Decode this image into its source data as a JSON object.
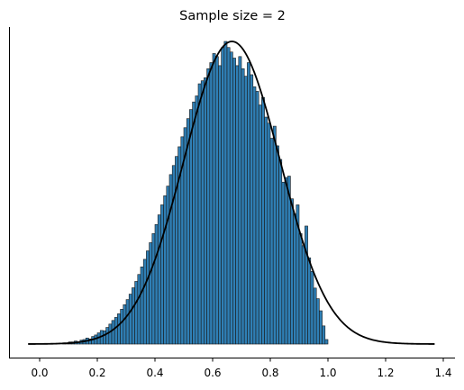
{
  "chart_data": {
    "type": "bar",
    "title": "Sample size = 2",
    "xlabel": "",
    "ylabel": "",
    "xlim": [
      -0.1,
      1.45
    ],
    "ylim": [
      0,
      1.05
    ],
    "x_ticks": [
      0.0,
      0.2,
      0.4,
      0.6,
      0.8,
      1.0,
      1.2,
      1.4
    ],
    "x_tick_labels": [
      "0.0",
      "0.2",
      "0.4",
      "0.6",
      "0.8",
      "1.0",
      "1.2",
      "1.4"
    ],
    "y_ticks_shown": false,
    "grid": false,
    "spines": [
      "left",
      "bottom"
    ],
    "series": [
      {
        "type": "histogram",
        "color": "#2f7fb5",
        "edge_color": "#1a1a1a",
        "bin_start": 0.0,
        "bin_width": 0.01,
        "heights": [
          0,
          0,
          0,
          0,
          0,
          0,
          0,
          0,
          0.004,
          0.003,
          0.007,
          0.007,
          0.01,
          0.007,
          0.013,
          0.015,
          0.02,
          0.017,
          0.025,
          0.03,
          0.037,
          0.045,
          0.044,
          0.055,
          0.066,
          0.078,
          0.088,
          0.1,
          0.115,
          0.13,
          0.147,
          0.165,
          0.186,
          0.207,
          0.23,
          0.255,
          0.28,
          0.308,
          0.335,
          0.365,
          0.395,
          0.427,
          0.46,
          0.49,
          0.522,
          0.56,
          0.59,
          0.62,
          0.652,
          0.685,
          0.715,
          0.745,
          0.775,
          0.8,
          0.82,
          0.86,
          0.87,
          0.88,
          0.91,
          0.93,
          0.96,
          0.95,
          0.92,
          0.98,
          1.0,
          0.98,
          0.965,
          0.945,
          0.92,
          0.95,
          0.91,
          0.885,
          0.93,
          0.89,
          0.85,
          0.835,
          0.79,
          0.815,
          0.75,
          0.73,
          0.68,
          0.72,
          0.655,
          0.61,
          0.535,
          0.55,
          0.555,
          0.48,
          0.43,
          0.46,
          0.365,
          0.325,
          0.39,
          0.285,
          0.24,
          0.185,
          0.15,
          0.11,
          0.06,
          0.015
        ]
      },
      {
        "type": "line",
        "color": "#000000",
        "x_start": -0.04,
        "x_end": 1.37,
        "mean": 0.667,
        "sd": 0.167,
        "peak": 1.0,
        "baseline": 0.0
      }
    ]
  }
}
